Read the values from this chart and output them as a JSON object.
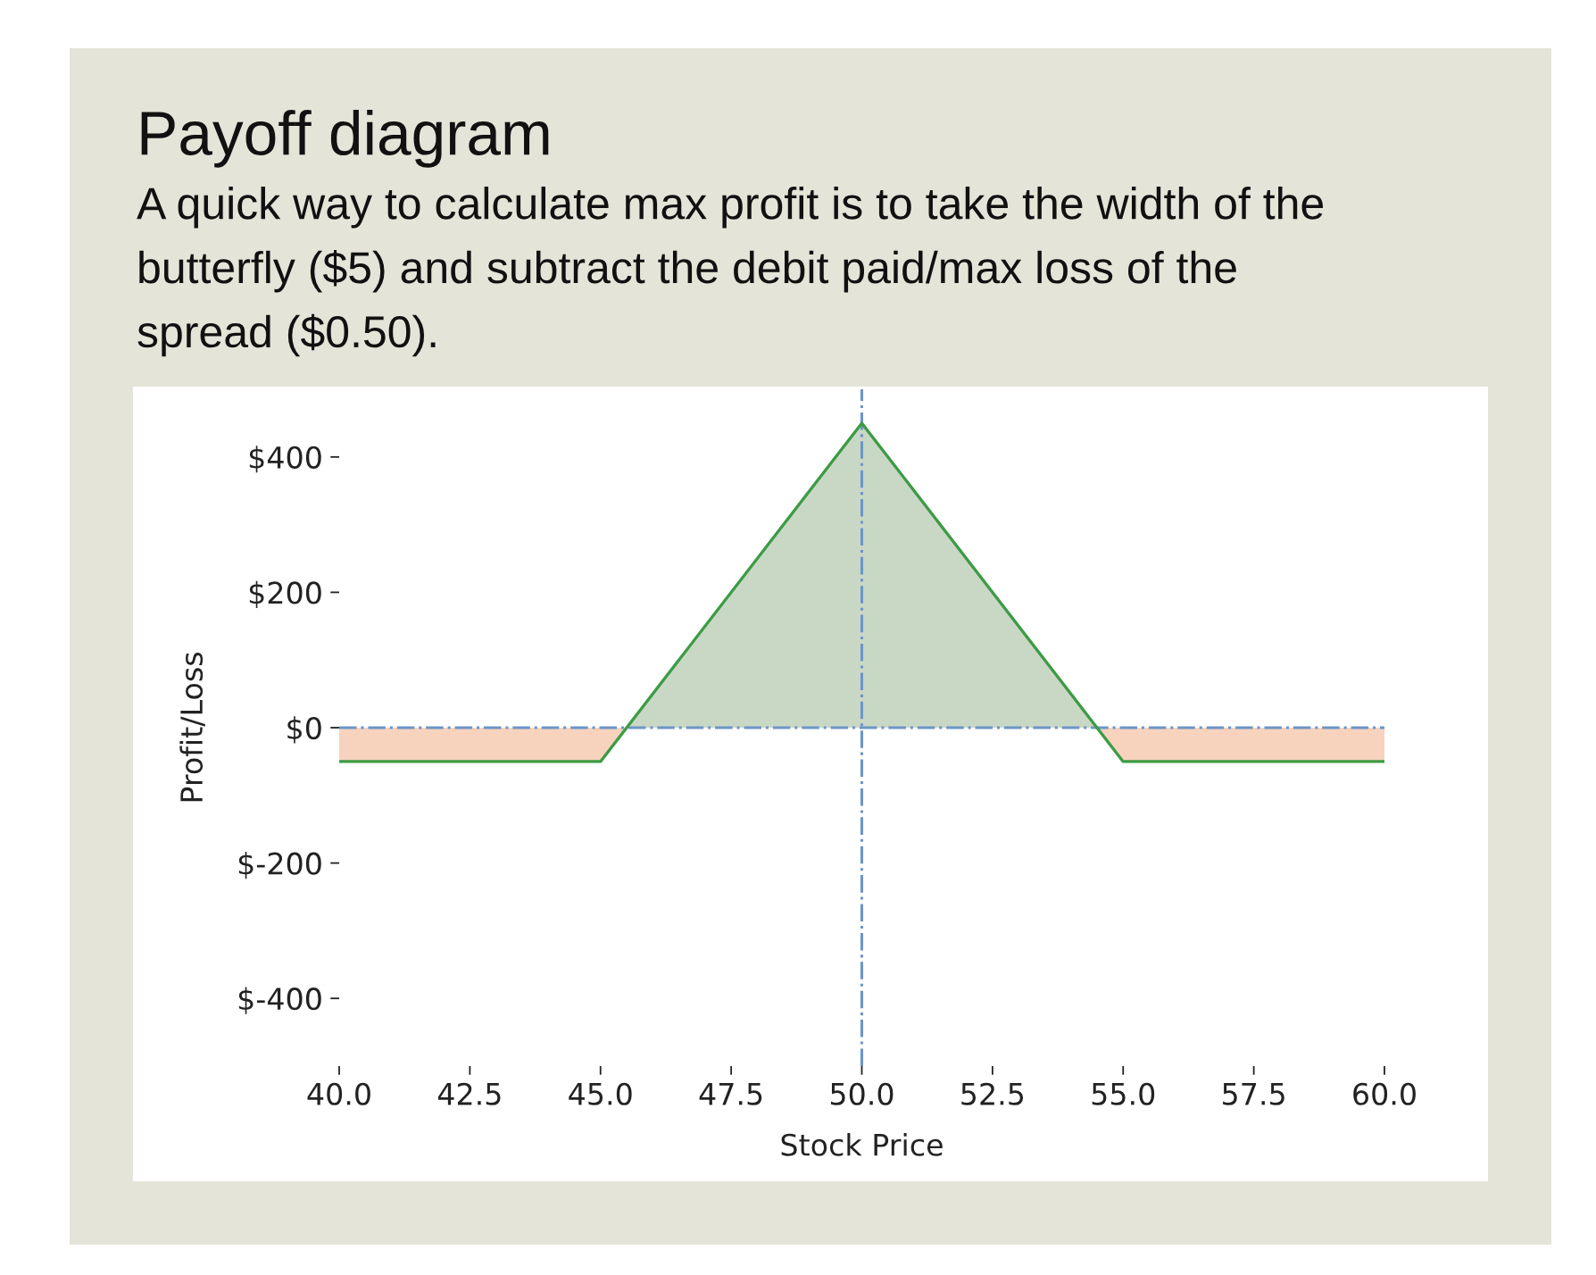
{
  "chart_data": {
    "type": "line",
    "title": "Payoff diagram",
    "subtitle": "A quick way to calculate max profit is to take the width of the\nbutterfly ($5) and subtract the debit paid/max loss of the\nspread ($0.50).",
    "xlabel": "Stock Price",
    "ylabel": "Profit/Loss",
    "series": [
      {
        "type": "area",
        "color": "#c9d8c5",
        "x": [
          45.5,
          50,
          54.5
        ],
        "values": [
          0,
          450,
          0
        ]
      },
      {
        "type": "area",
        "color": "#f7d3be",
        "x": [
          40,
          45,
          45.5,
          50,
          54.5,
          55,
          60
        ],
        "values": [
          -50,
          -50,
          0,
          null,
          0,
          -50,
          -50
        ]
      },
      {
        "color": "#3d9b45",
        "x": [
          40,
          45,
          50,
          55,
          60
        ],
        "values": [
          -50,
          -50,
          450,
          -50,
          -50
        ]
      }
    ],
    "xlim": [
      40,
      60
    ],
    "xticks": [
      {
        "value": 40,
        "label": "40.0"
      },
      {
        "value": 42.5,
        "label": "42.5"
      },
      {
        "value": 45,
        "label": "45.0"
      },
      {
        "value": 47.5,
        "label": "47.5"
      },
      {
        "value": 50,
        "label": "50.0"
      },
      {
        "value": 52.5,
        "label": "52.5"
      },
      {
        "value": 55,
        "label": "55.0"
      },
      {
        "value": 57.5,
        "label": "57.5"
      },
      {
        "value": 60,
        "label": "60.0"
      }
    ],
    "ylim": [
      -500,
      500
    ],
    "yticks": [
      {
        "value": -400,
        "label": "$-400"
      },
      {
        "value": -200,
        "label": "$-200"
      },
      {
        "value": 0,
        "label": "$0"
      },
      {
        "value": 200,
        "label": "$200"
      },
      {
        "value": 400,
        "label": "$400"
      }
    ],
    "ref_lines": [
      {
        "axis": "x",
        "value": 50,
        "color": "#6d95c8",
        "line_style": "dashdot"
      },
      {
        "axis": "y",
        "value": 0,
        "color": "#6d95c8",
        "line_style": "dashdot"
      }
    ]
  }
}
